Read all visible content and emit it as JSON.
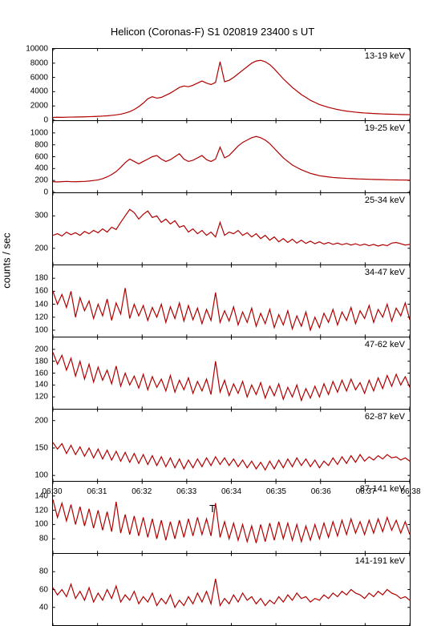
{
  "title": "Helicon (Coronas-F) S1 020819 23400 s UT",
  "y_axis_label": "counts / sec",
  "x_axis_label": "T",
  "line_color": "#b00000",
  "background_color": "#ffffff",
  "x_range": [
    0,
    480
  ],
  "x_ticks": [
    "06:30",
    "06:31",
    "06:32",
    "06:33",
    "06:34",
    "06:35",
    "06:36",
    "06:37",
    "06:38"
  ],
  "panels": [
    {
      "label": "13-19 keV",
      "ylim": [
        0,
        10000
      ],
      "yticks": [
        0,
        2000,
        4000,
        6000,
        8000,
        10000
      ],
      "data": [
        400,
        420,
        410,
        430,
        440,
        450,
        460,
        480,
        500,
        520,
        550,
        580,
        620,
        680,
        750,
        850,
        1000,
        1200,
        1500,
        1900,
        2400,
        3000,
        3300,
        3100,
        3200,
        3500,
        3800,
        4200,
        4600,
        4800,
        4700,
        4900,
        5200,
        5500,
        5200,
        5000,
        5300,
        8200,
        5400,
        5600,
        6000,
        6500,
        7000,
        7500,
        8000,
        8300,
        8400,
        8200,
        7800,
        7200,
        6500,
        5800,
        5200,
        4600,
        4100,
        3600,
        3200,
        2800,
        2500,
        2200,
        2000,
        1800,
        1650,
        1500,
        1380,
        1280,
        1200,
        1130,
        1070,
        1020,
        980,
        940,
        910,
        880,
        860,
        840,
        820,
        800,
        790,
        780
      ]
    },
    {
      "label": "19-25 keV",
      "ylim": [
        0,
        1200
      ],
      "yticks": [
        0,
        200,
        400,
        600,
        800,
        1000
      ],
      "data": [
        180,
        175,
        180,
        185,
        180,
        178,
        182,
        185,
        190,
        200,
        210,
        230,
        260,
        300,
        350,
        420,
        500,
        560,
        520,
        480,
        520,
        560,
        600,
        620,
        560,
        520,
        550,
        600,
        650,
        560,
        520,
        540,
        580,
        620,
        550,
        520,
        560,
        760,
        580,
        620,
        700,
        780,
        840,
        880,
        920,
        940,
        920,
        880,
        820,
        740,
        660,
        580,
        520,
        460,
        420,
        380,
        350,
        320,
        300,
        280,
        270,
        260,
        250,
        245,
        240,
        235,
        232,
        228,
        225,
        222,
        220,
        218,
        216,
        214,
        212,
        210,
        209,
        208,
        207,
        206
      ]
    },
    {
      "label": "25-34 keV",
      "ylim": [
        150,
        370
      ],
      "yticks": [
        200,
        300
      ],
      "data": [
        240,
        245,
        238,
        250,
        242,
        248,
        240,
        252,
        245,
        255,
        248,
        260,
        250,
        265,
        258,
        280,
        300,
        320,
        310,
        290,
        305,
        315,
        295,
        300,
        280,
        290,
        275,
        285,
        265,
        270,
        250,
        260,
        245,
        255,
        240,
        250,
        235,
        280,
        240,
        250,
        245,
        255,
        240,
        248,
        235,
        245,
        230,
        240,
        225,
        235,
        220,
        230,
        218,
        228,
        216,
        225,
        215,
        222,
        214,
        220,
        213,
        218,
        212,
        216,
        211,
        215,
        210,
        214,
        209,
        213,
        208,
        212,
        207,
        211,
        208,
        216,
        218,
        214,
        210,
        212
      ]
    },
    {
      "label": "34-47 keV",
      "ylim": [
        90,
        200
      ],
      "yticks": [
        100,
        120,
        140,
        160,
        180
      ],
      "data": [
        160,
        140,
        155,
        135,
        160,
        120,
        150,
        130,
        145,
        118,
        140,
        122,
        148,
        115,
        142,
        125,
        165,
        118,
        140,
        122,
        138,
        115,
        135,
        120,
        140,
        112,
        136,
        118,
        142,
        114,
        138,
        116,
        134,
        110,
        132,
        115,
        158,
        112,
        130,
        114,
        136,
        108,
        128,
        112,
        134,
        106,
        126,
        110,
        132,
        104,
        124,
        108,
        130,
        102,
        122,
        106,
        128,
        100,
        120,
        104,
        126,
        112,
        132,
        108,
        128,
        115,
        135,
        110,
        130,
        118,
        138,
        112,
        132,
        120,
        140,
        114,
        134,
        122,
        142,
        116
      ]
    },
    {
      "label": "47-62 keV",
      "ylim": [
        100,
        220
      ],
      "yticks": [
        120,
        140,
        160,
        180,
        200
      ],
      "data": [
        195,
        175,
        190,
        165,
        185,
        155,
        180,
        150,
        175,
        145,
        170,
        148,
        165,
        142,
        172,
        138,
        160,
        140,
        155,
        135,
        158,
        132,
        154,
        136,
        150,
        130,
        156,
        128,
        148,
        132,
        152,
        126,
        146,
        130,
        150,
        124,
        180,
        128,
        148,
        122,
        142,
        126,
        146,
        120,
        140,
        124,
        144,
        118,
        138,
        122,
        142,
        116,
        136,
        120,
        140,
        114,
        134,
        118,
        138,
        120,
        142,
        124,
        146,
        128,
        148,
        130,
        150,
        132,
        144,
        126,
        148,
        130,
        152,
        134,
        156,
        138,
        158,
        140,
        154,
        136
      ]
    },
    {
      "label": "62-87 keV",
      "ylim": [
        90,
        220
      ],
      "yticks": [
        100,
        150,
        200
      ],
      "data": [
        160,
        148,
        158,
        140,
        155,
        138,
        152,
        135,
        150,
        132,
        148,
        130,
        146,
        128,
        144,
        126,
        142,
        124,
        140,
        122,
        138,
        120,
        136,
        118,
        134,
        116,
        132,
        114,
        130,
        112,
        128,
        114,
        130,
        116,
        132,
        118,
        134,
        120,
        132,
        118,
        130,
        116,
        128,
        114,
        126,
        112,
        124,
        110,
        126,
        112,
        128,
        114,
        130,
        116,
        132,
        118,
        130,
        116,
        128,
        114,
        126,
        118,
        132,
        120,
        134,
        122,
        136,
        124,
        138,
        126,
        134,
        128,
        136,
        130,
        138,
        132,
        134,
        128,
        132,
        126
      ]
    },
    {
      "label": "87-141 keV",
      "ylim": [
        60,
        160
      ],
      "yticks": [
        80,
        100,
        120,
        140
      ],
      "data": [
        135,
        110,
        130,
        105,
        128,
        100,
        125,
        98,
        122,
        95,
        120,
        92,
        118,
        90,
        132,
        88,
        114,
        86,
        112,
        84,
        110,
        82,
        108,
        80,
        106,
        78,
        104,
        80,
        106,
        82,
        108,
        84,
        110,
        86,
        108,
        84,
        130,
        82,
        104,
        80,
        102,
        78,
        100,
        76,
        98,
        74,
        100,
        76,
        102,
        78,
        104,
        80,
        102,
        78,
        100,
        76,
        98,
        78,
        100,
        80,
        102,
        82,
        104,
        84,
        106,
        86,
        108,
        88,
        104,
        86,
        106,
        88,
        108,
        90,
        110,
        92,
        106,
        88,
        104,
        86
      ]
    },
    {
      "label": "141-191 keV",
      "ylim": [
        20,
        100
      ],
      "yticks": [
        40,
        60,
        80
      ],
      "data": [
        62,
        54,
        60,
        52,
        66,
        50,
        58,
        48,
        62,
        46,
        56,
        48,
        60,
        50,
        64,
        46,
        54,
        48,
        58,
        44,
        52,
        46,
        56,
        42,
        50,
        44,
        54,
        40,
        48,
        42,
        52,
        44,
        56,
        46,
        58,
        44,
        72,
        42,
        50,
        44,
        54,
        46,
        56,
        48,
        52,
        44,
        50,
        42,
        48,
        44,
        52,
        46,
        54,
        48,
        56,
        50,
        52,
        46,
        50,
        48,
        54,
        50,
        56,
        52,
        58,
        54,
        60,
        56,
        54,
        50,
        56,
        52,
        58,
        54,
        60,
        56,
        54,
        50,
        52,
        48
      ]
    }
  ]
}
